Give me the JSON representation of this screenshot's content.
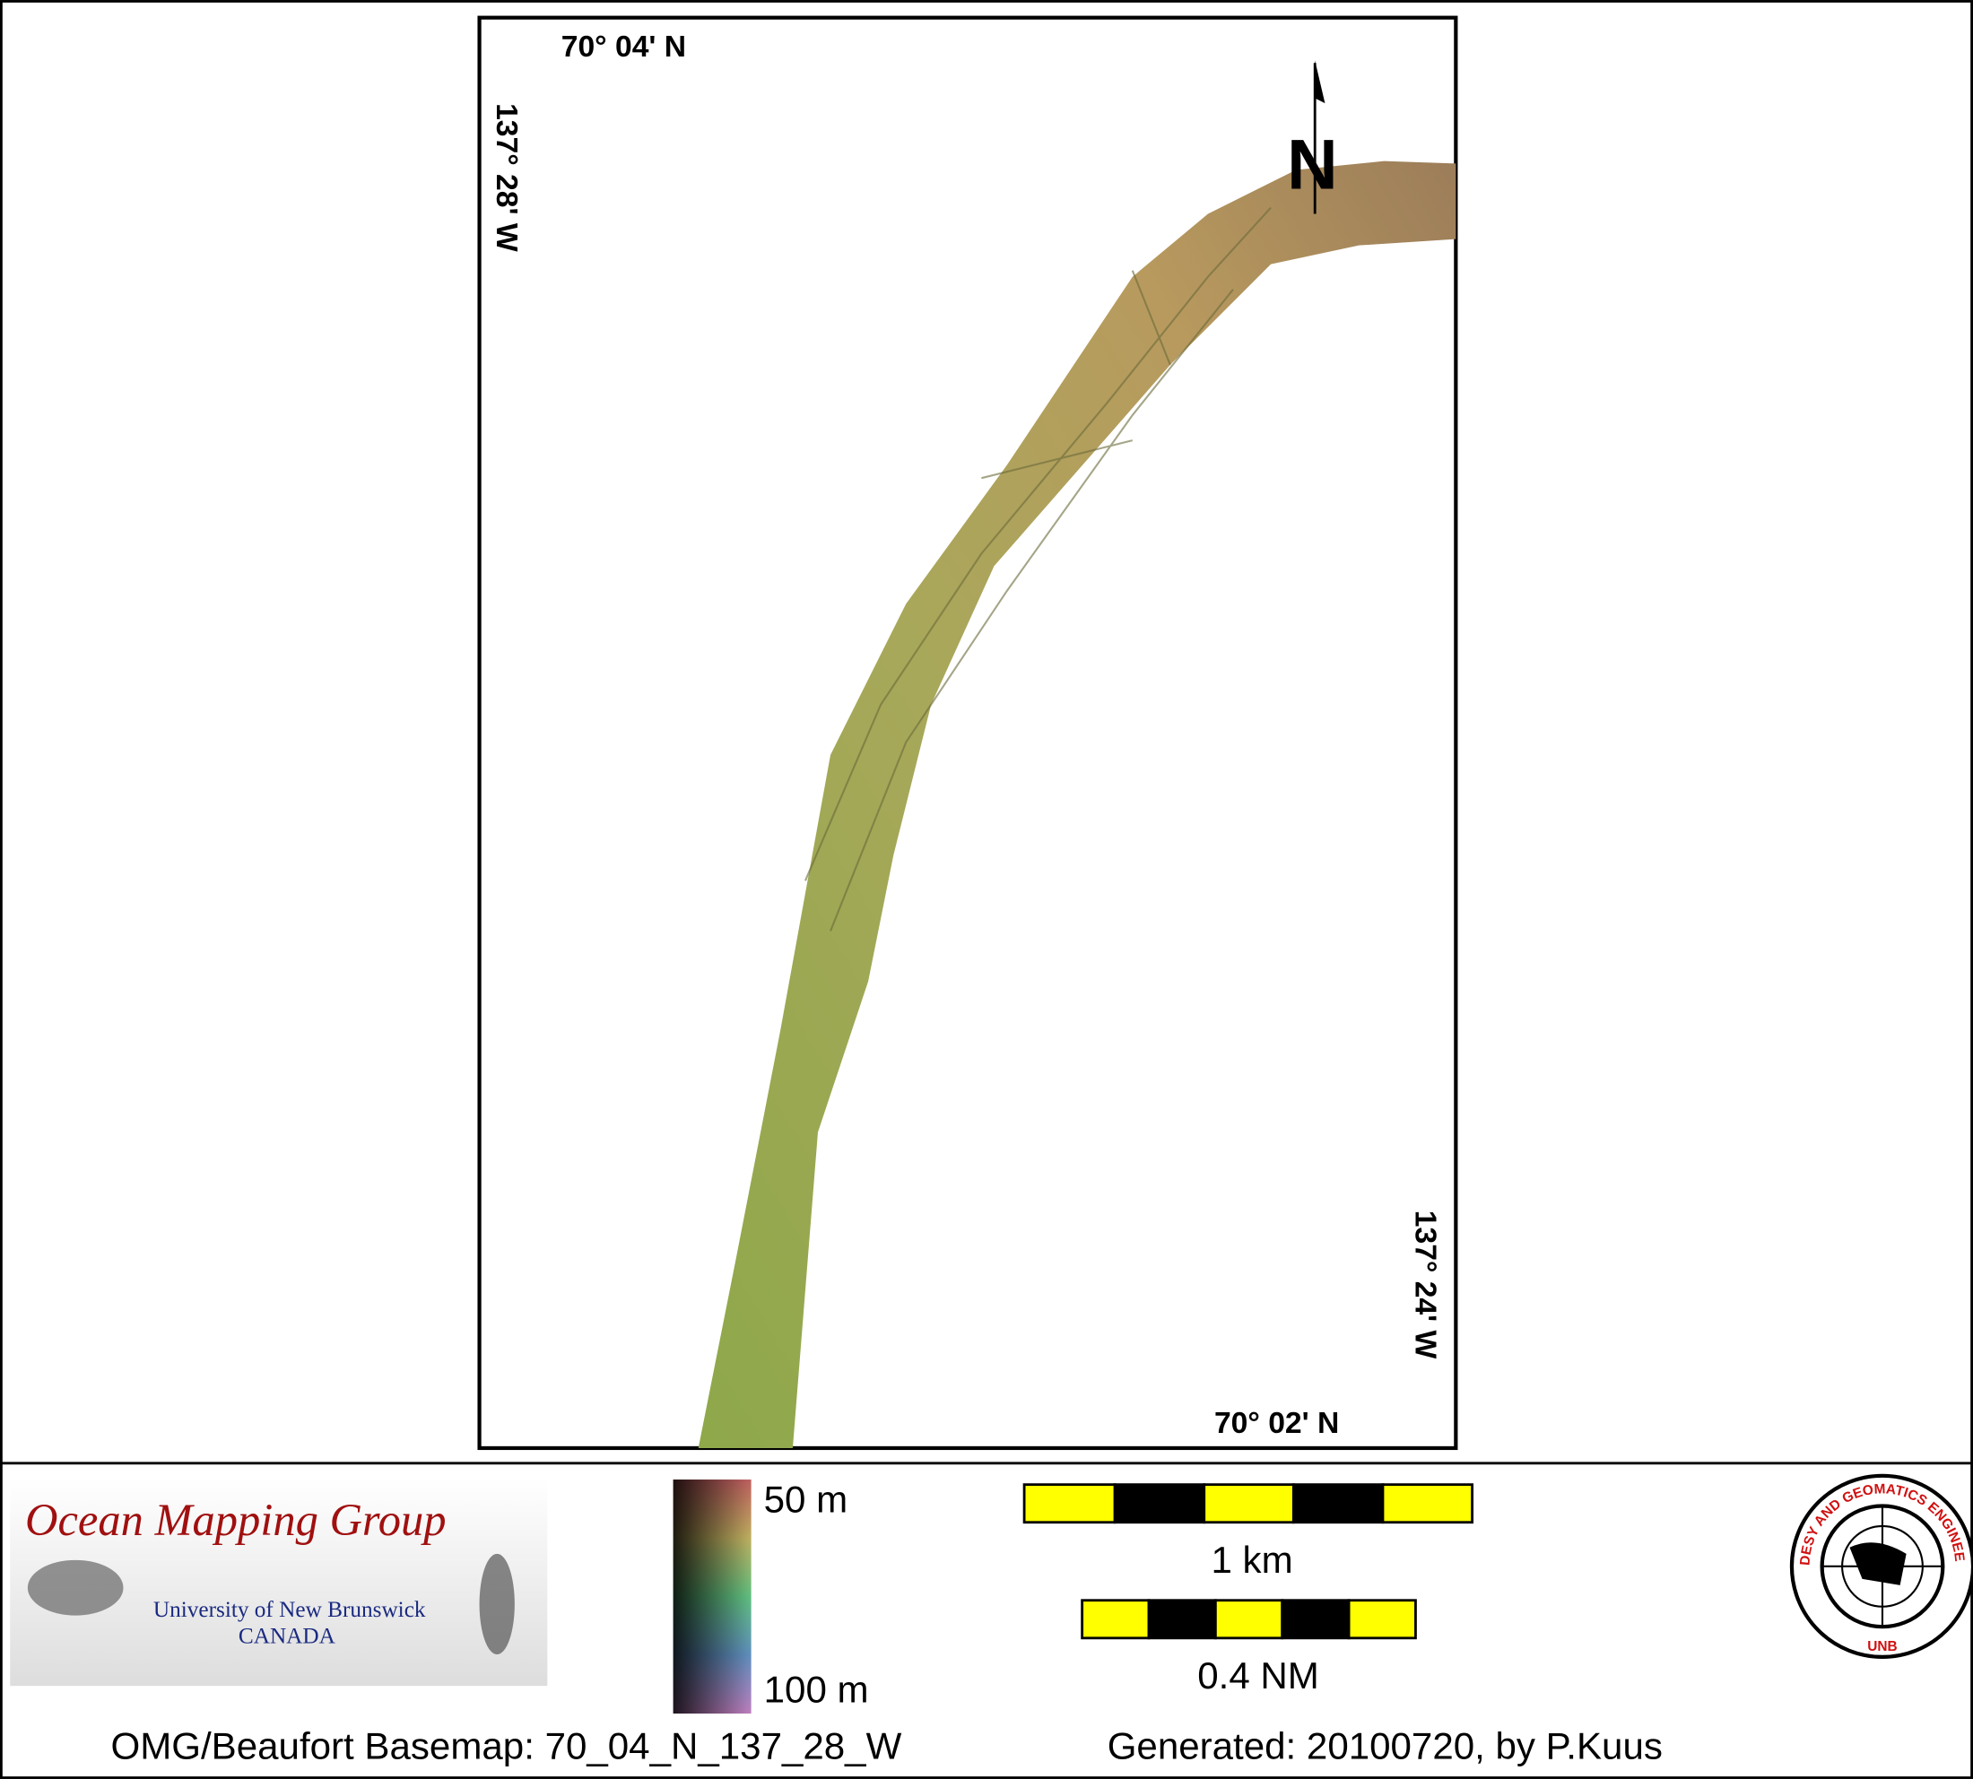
{
  "map": {
    "top_latitude": "70° 04' N",
    "bottom_latitude": "70° 02' N",
    "left_longitude": "137° 28' W",
    "right_longitude": "137° 24' W",
    "north_arrow": "N"
  },
  "legend": {
    "depth_top": "50 m",
    "depth_bottom": "100 m",
    "scale_km": "1 km",
    "scale_nm": "0.4 NM"
  },
  "logos": {
    "omg_title": "Ocean Mapping Group",
    "omg_university": "University of New Brunswick",
    "omg_country": "CANADA",
    "unb_ring": "GEODESY AND GEOMATICS ENGINEERING",
    "unb_short": "UNB"
  },
  "footer": {
    "basemap": "OMG/Beaufort Basemap: 70_04_N_137_28_W",
    "generated": "Generated: 20100720, by P.Kuus"
  }
}
